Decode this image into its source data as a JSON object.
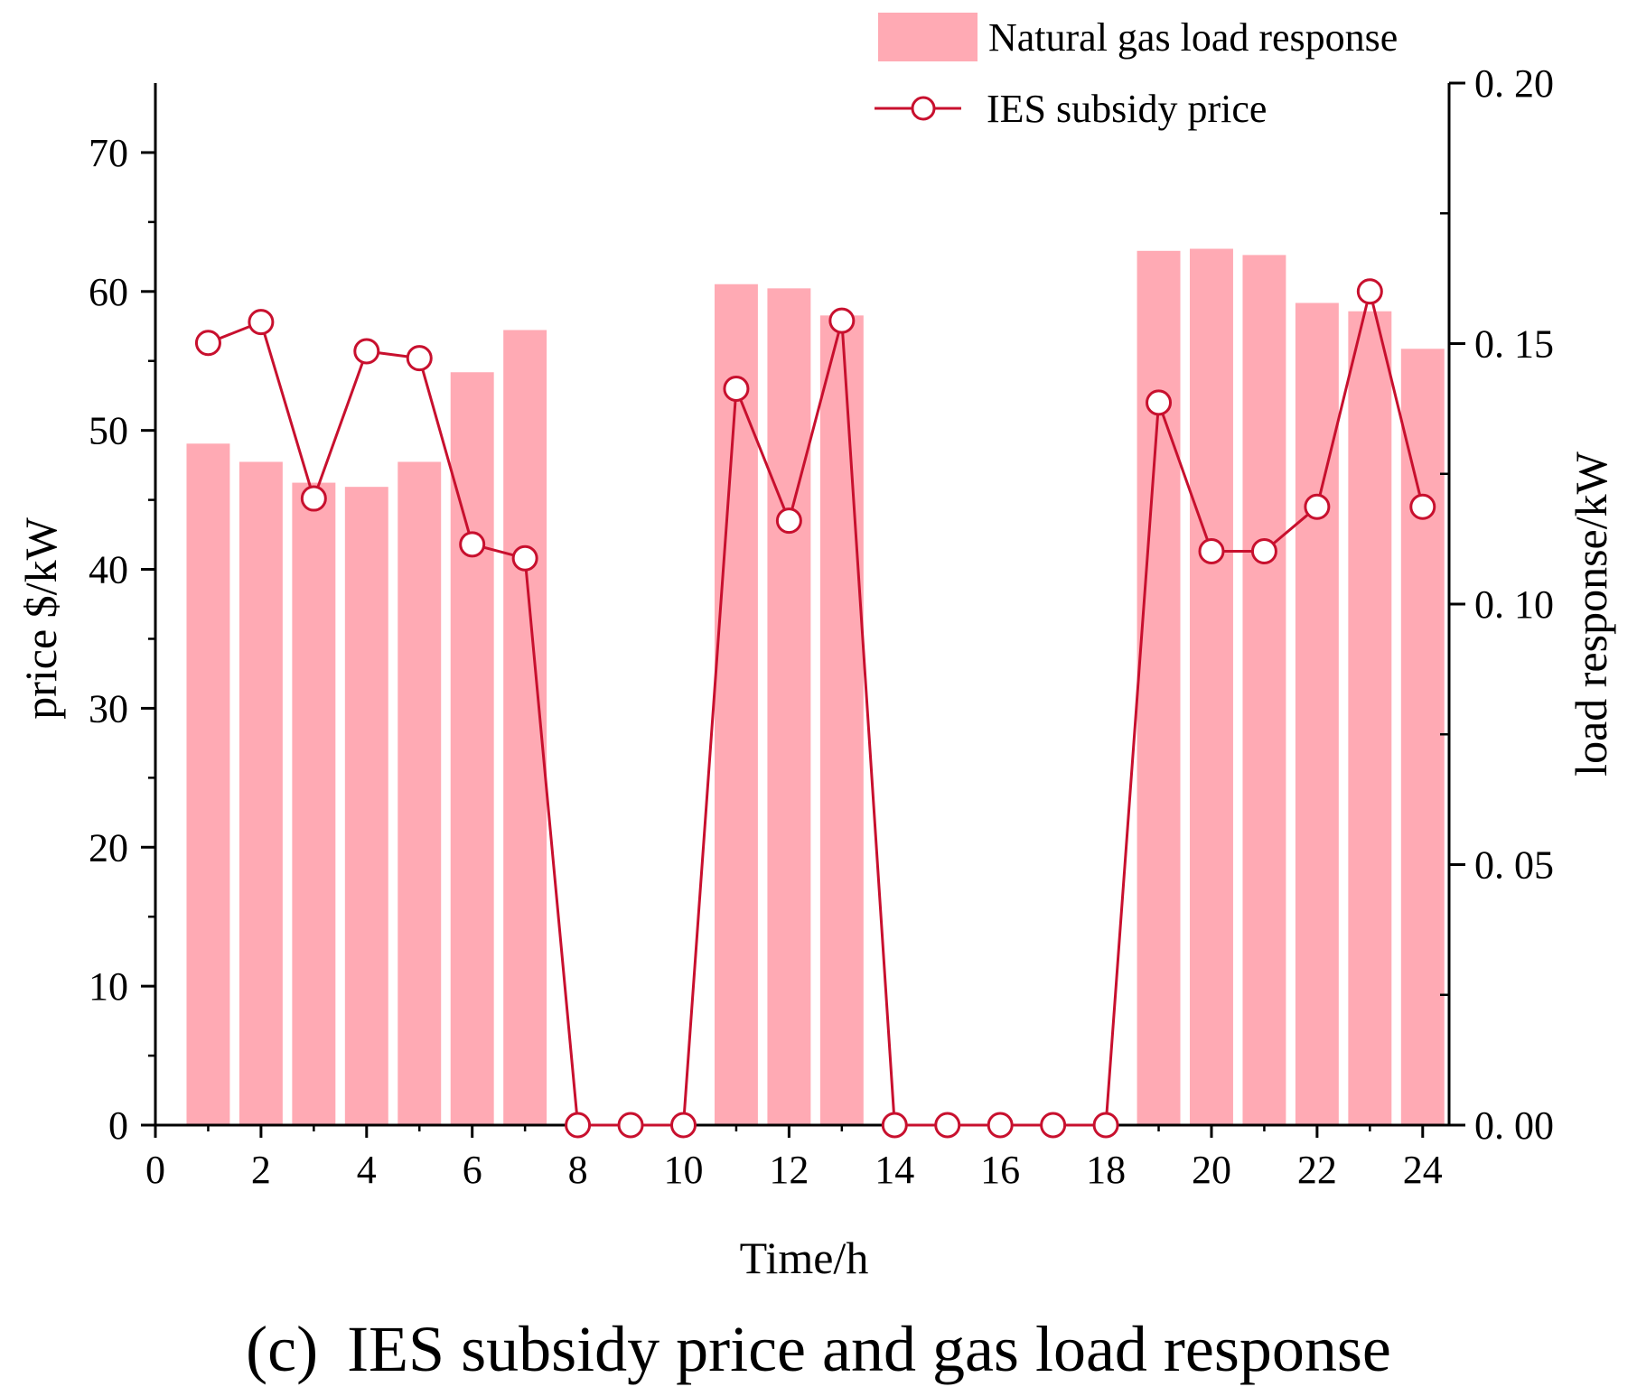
{
  "chart_data": {
    "type": "bar+line",
    "title": "IES subsidy price and gas load response",
    "caption_prefix": "(c)",
    "caption_text": "IES subsidy price and gas load response",
    "xlabel": "Time/h",
    "ylabel_left": "price $/kW",
    "ylabel_right": "load response/kW",
    "xlim": [
      0,
      24.5
    ],
    "ylim_left": [
      0,
      75
    ],
    "ylim_right": [
      0,
      0.2
    ],
    "x_ticks": [
      0,
      2,
      4,
      6,
      8,
      10,
      12,
      14,
      16,
      18,
      20,
      22,
      24
    ],
    "y_left_ticks": [
      0,
      10,
      20,
      30,
      40,
      50,
      60,
      70
    ],
    "y_right_ticks": [
      "0.00",
      "0.05",
      "0.10",
      "0.15",
      "0.20"
    ],
    "legend_position": "top-right",
    "x": [
      1,
      2,
      3,
      4,
      5,
      6,
      7,
      8,
      9,
      10,
      11,
      12,
      13,
      14,
      15,
      16,
      17,
      18,
      19,
      20,
      21,
      22,
      23,
      24
    ],
    "series": [
      {
        "name": "Natural gas load response",
        "type": "bar",
        "axis": "right",
        "color": "#FFAAB4",
        "values": [
          0.1308,
          0.1273,
          0.1233,
          0.1225,
          0.1273,
          0.1445,
          0.1526,
          0,
          0,
          0,
          0.1614,
          0.1606,
          0.1554,
          0,
          0,
          0,
          0,
          0,
          0.1678,
          0.1682,
          0.167,
          0.1578,
          0.1562,
          0.149
        ]
      },
      {
        "name": "IES subsidy price",
        "type": "line",
        "axis": "left",
        "color": "#C8102E",
        "marker": "circle",
        "values": [
          56.3,
          57.8,
          45.1,
          55.7,
          55.2,
          41.8,
          40.8,
          0,
          0,
          0,
          53.0,
          43.5,
          57.9,
          0,
          0,
          0,
          0,
          0,
          52.0,
          41.3,
          41.3,
          44.5,
          60.0,
          44.5
        ]
      }
    ]
  }
}
